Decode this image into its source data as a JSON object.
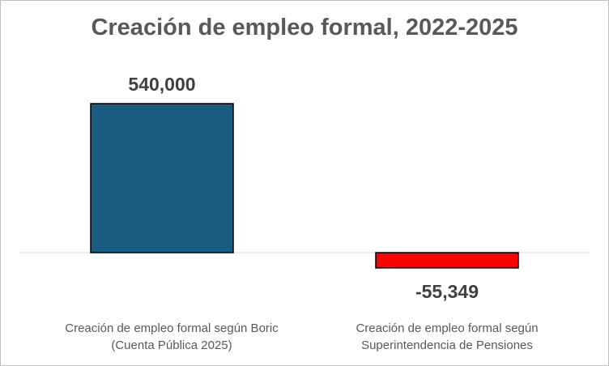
{
  "chart_data": {
    "type": "bar",
    "title": "Creación de empleo formal, 2022-2025",
    "categories": [
      [
        "Creación de empleo formal según Boric",
        "(Cuenta Pública 2025)"
      ],
      [
        "Creación de empleo formal según",
        "Superintendencia de Pensiones"
      ]
    ],
    "values": [
      540000,
      -55349
    ],
    "data_labels": [
      "540,000",
      "-55,349"
    ],
    "bar_colors": [
      "#1a5b80",
      "#ff0000"
    ],
    "ylim": [
      -60000,
      540000
    ],
    "xlabel": "",
    "ylabel": "",
    "grid": false,
    "legend": "none"
  }
}
